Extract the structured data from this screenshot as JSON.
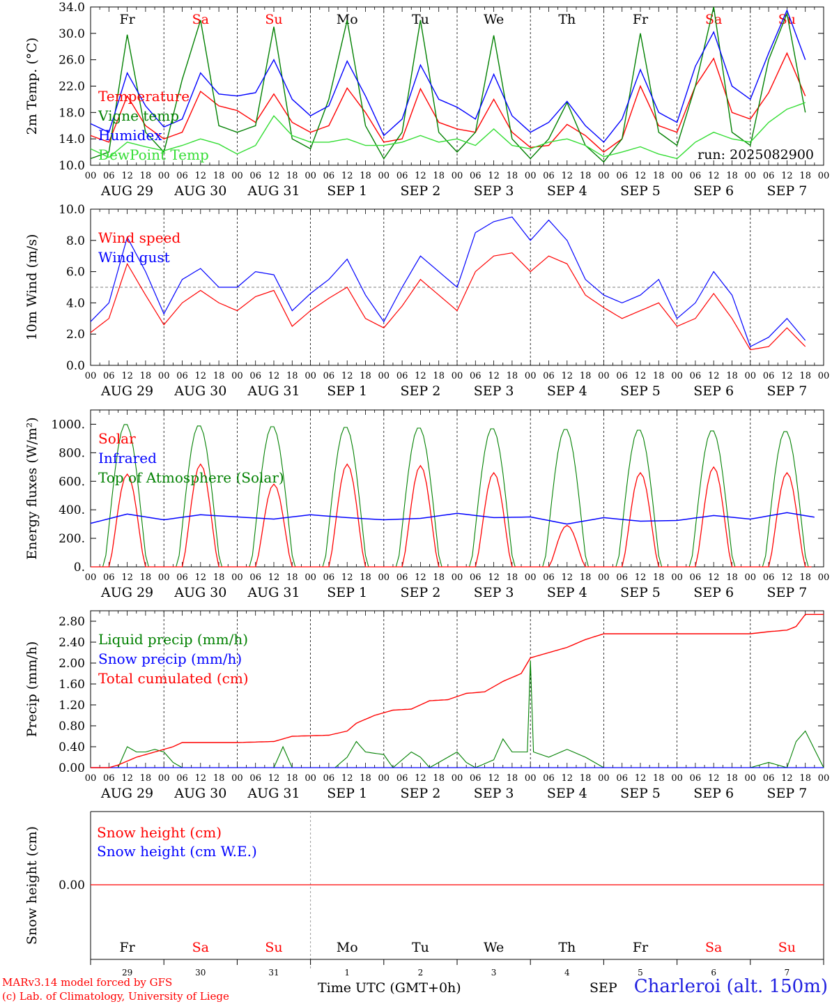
{
  "footer": {
    "model_line": "MARv3.14 model forced by GFS",
    "lab_line": "(c) Lab. of Climatology, University of Liege",
    "time_label": "Time UTC (GMT+0h)",
    "station": "Charleroi (alt. 150m)",
    "month_stub": "SEP"
  },
  "run_label": "run: 2025082900",
  "colors": {
    "red": "#ff0000",
    "green": "#008000",
    "blue": "#0000ff",
    "lightgreen": "#33dd33"
  },
  "chart_data": [
    {
      "type": "line",
      "panel": "temperature",
      "ylabel": "2m Temp. (°C)",
      "ylim": [
        10,
        34
      ],
      "yticks": [
        "10.0",
        "14.0",
        "18.0",
        "22.0",
        "26.0",
        "30.0",
        "34.0"
      ],
      "hour_ticks": [
        "00",
        "06",
        "12",
        "18"
      ],
      "day_labels": [
        "AUG 29",
        "AUG 30",
        "AUG 31",
        "SEP  1",
        "SEP  2",
        "SEP  3",
        "SEP  4",
        "SEP  5",
        "SEP  6",
        "SEP  7"
      ],
      "weekdays": [
        "Fr",
        "Sa",
        "Su",
        "Mo",
        "Tu",
        "We",
        "Th",
        "Fr",
        "Sa",
        "Su"
      ],
      "weekend": [
        false,
        true,
        true,
        false,
        false,
        false,
        false,
        false,
        true,
        true
      ],
      "x_hours": [
        0,
        6,
        12,
        18,
        24,
        30,
        36,
        42,
        48,
        54,
        60,
        66,
        72,
        78,
        84,
        90,
        96,
        102,
        108,
        114,
        120,
        126,
        132,
        138,
        144,
        150,
        156,
        162,
        168,
        174,
        180,
        186,
        192,
        198,
        204,
        210,
        216,
        222,
        228,
        234
      ],
      "series": [
        {
          "name": "Temperature",
          "color": "#ff0000",
          "values": [
            14.5,
            13.5,
            20.5,
            16,
            14,
            15,
            21.2,
            19,
            18.3,
            16.5,
            20.8,
            16.5,
            15,
            16,
            21.7,
            18,
            13.5,
            14,
            21.6,
            16.5,
            15.5,
            15,
            20,
            15,
            12.7,
            13,
            16.2,
            14.5,
            12,
            14,
            22,
            16,
            15,
            22,
            26.2,
            18,
            17,
            21,
            27,
            20.5
          ]
        },
        {
          "name": "Vigne temp",
          "color": "#008000",
          "values": [
            11,
            12,
            29.8,
            15,
            12,
            23,
            32,
            16,
            15,
            16,
            31,
            14,
            12.5,
            20,
            32,
            16,
            11,
            15,
            32,
            15,
            12,
            15,
            29.7,
            14,
            11,
            14,
            19.5,
            13,
            10.5,
            14,
            30,
            15,
            13,
            22,
            34,
            15,
            13,
            26,
            33,
            18
          ]
        },
        {
          "name": "Humidex",
          "color": "#0000ff",
          "values": [
            16.3,
            15,
            24,
            19,
            15.8,
            17,
            24,
            20.8,
            20.5,
            21,
            26,
            20,
            17.5,
            19,
            25.8,
            20.5,
            14.5,
            17,
            25.2,
            20,
            18.8,
            17,
            23.8,
            17.5,
            15,
            16.5,
            19.7,
            16,
            13.5,
            17,
            24.5,
            18,
            16.5,
            25,
            30.2,
            22,
            20,
            27,
            33.5,
            26
          ]
        },
        {
          "name": "DewPoint Temp",
          "color": "#33dd33",
          "values": [
            12.5,
            11.2,
            13.5,
            12.8,
            12.2,
            13,
            14,
            13.2,
            11.7,
            13,
            17.5,
            14.5,
            13.5,
            13.5,
            14,
            13,
            13,
            13.5,
            14.5,
            13.5,
            14,
            13,
            15.5,
            13,
            12.5,
            13.5,
            14,
            13,
            11.3,
            12,
            12.8,
            11.7,
            11,
            13.5,
            15,
            14,
            13.5,
            16.5,
            18.5,
            19.5
          ]
        }
      ]
    },
    {
      "type": "line",
      "panel": "wind",
      "ylabel": "10m Wind (m/s)",
      "ylim": [
        0,
        10
      ],
      "yticks": [
        "0.0",
        "2.0",
        "4.0",
        "6.0",
        "8.0",
        "10.0"
      ],
      "hour_ticks": [
        "00",
        "06",
        "12",
        "18"
      ],
      "day_labels": [
        "AUG 29",
        "AUG 30",
        "AUG 31",
        "SEP  1",
        "SEP  2",
        "SEP  3",
        "SEP  4",
        "SEP  5",
        "SEP  6",
        "SEP  7"
      ],
      "reference_line": 5,
      "x_hours": [
        0,
        6,
        12,
        18,
        24,
        30,
        36,
        42,
        48,
        54,
        60,
        66,
        72,
        78,
        84,
        90,
        96,
        102,
        108,
        114,
        120,
        126,
        132,
        138,
        144,
        150,
        156,
        162,
        168,
        174,
        180,
        186,
        192,
        198,
        204,
        210,
        216,
        222,
        228,
        234
      ],
      "series": [
        {
          "name": "Wind speed",
          "color": "#ff0000",
          "values": [
            2.1,
            3.0,
            6.5,
            4.5,
            2.6,
            4.0,
            4.8,
            4.0,
            3.5,
            4.4,
            4.8,
            2.5,
            3.5,
            4.3,
            5.0,
            3.0,
            2.4,
            3.8,
            5.5,
            4.5,
            3.5,
            6.0,
            7.0,
            7.2,
            6.0,
            7.0,
            6.5,
            4.5,
            3.7,
            3.0,
            3.5,
            4.0,
            2.5,
            3.0,
            4.6,
            3.0,
            1.0,
            1.2,
            2.4,
            1.2
          ]
        },
        {
          "name": "Wind gust",
          "color": "#0000ff",
          "values": [
            2.8,
            4.0,
            8.2,
            6.0,
            3.3,
            5.5,
            6.2,
            5.0,
            5.0,
            6.0,
            5.8,
            3.5,
            4.6,
            5.5,
            6.8,
            4.5,
            2.8,
            5.0,
            7.0,
            6.0,
            5.0,
            8.5,
            9.2,
            9.5,
            8.0,
            9.3,
            8.0,
            5.5,
            4.5,
            4.0,
            4.5,
            5.5,
            3.0,
            4.0,
            6.0,
            4.5,
            1.2,
            1.8,
            3.0,
            1.6
          ]
        }
      ]
    },
    {
      "type": "line",
      "panel": "energy",
      "ylabel": "Energy fluxes (W/m²)",
      "ylim": [
        0,
        1100
      ],
      "yticks": [
        "0.",
        "200.",
        "400.",
        "600.",
        "800.",
        "1000."
      ],
      "hour_ticks": [
        "00",
        "06",
        "12",
        "18"
      ],
      "day_labels": [
        "AUG 29",
        "AUG 30",
        "AUG 31",
        "SEP  1",
        "SEP  2",
        "SEP  3",
        "SEP  4",
        "SEP  5",
        "SEP  6",
        "SEP  7"
      ],
      "day_solar_peaks": [
        650,
        720,
        580,
        720,
        710,
        660,
        290,
        660,
        700,
        660
      ],
      "toa_peaks": [
        1005,
        995,
        990,
        985,
        980,
        975,
        970,
        965,
        960,
        955
      ],
      "infrared_daily": [
        305,
        370,
        330,
        365,
        350,
        335,
        365,
        345,
        330,
        340,
        375,
        345,
        350,
        300,
        345,
        320,
        325,
        360,
        335,
        380
      ],
      "series": [
        {
          "name": "Solar",
          "color": "#ff0000"
        },
        {
          "name": "Infrared",
          "color": "#0000ff"
        },
        {
          "name": "Top of Atmosphere (Solar)",
          "color": "#008000"
        }
      ]
    },
    {
      "type": "line",
      "panel": "precip",
      "ylabel": "Precip (mm/h)",
      "ylim": [
        0,
        3.0
      ],
      "yticks": [
        "0.00",
        "0.40",
        "0.80",
        "1.20",
        "1.60",
        "2.00",
        "2.40",
        "2.80"
      ],
      "hour_ticks": [
        "00",
        "06",
        "12",
        "18"
      ],
      "day_labels": [
        "AUG 29",
        "AUG 30",
        "AUG 31",
        "SEP  1",
        "SEP  2",
        "SEP  3",
        "SEP  4",
        "SEP  5",
        "SEP  6",
        "SEP  7"
      ],
      "cumulated_x_hours": [
        0,
        6,
        9,
        15,
        21,
        27,
        30,
        48,
        60,
        66,
        78,
        84,
        87,
        93,
        99,
        105,
        111,
        117,
        123,
        129,
        135,
        141,
        144,
        147,
        156,
        162,
        168,
        192,
        216,
        222,
        228,
        231,
        234,
        240
      ],
      "cumulated_values": [
        0,
        0,
        0.05,
        0.2,
        0.3,
        0.4,
        0.48,
        0.48,
        0.5,
        0.6,
        0.62,
        0.7,
        0.85,
        1.0,
        1.1,
        1.12,
        1.28,
        1.3,
        1.42,
        1.45,
        1.65,
        1.8,
        2.1,
        2.15,
        2.3,
        2.45,
        2.56,
        2.56,
        2.56,
        2.6,
        2.63,
        2.7,
        2.93,
        2.93
      ],
      "liquid_x_hours": [
        0,
        9,
        12,
        15,
        18,
        21,
        24,
        27,
        30,
        60,
        63,
        66,
        80,
        84,
        87,
        90,
        96,
        99,
        105,
        108,
        111,
        117,
        120,
        123,
        126,
        132,
        135,
        138,
        141,
        143,
        144,
        145,
        150,
        156,
        162,
        168,
        216,
        222,
        228,
        231,
        234,
        240
      ],
      "liquid_values": [
        0,
        0,
        0.4,
        0.3,
        0.3,
        0.35,
        0.3,
        0.1,
        0,
        0,
        0.4,
        0,
        0,
        0.2,
        0.5,
        0.3,
        0.25,
        0,
        0.3,
        0.2,
        0,
        0.2,
        0.3,
        0.1,
        0,
        0.15,
        0.55,
        0.3,
        0.3,
        0.3,
        2.05,
        0.3,
        0.2,
        0.35,
        0.2,
        0,
        0,
        0.1,
        0,
        0.5,
        0.7,
        0
      ],
      "series": [
        {
          "name": "Liquid precip (mm/h)",
          "color": "#008000"
        },
        {
          "name": "Snow precip (mm/h)",
          "color": "#0000ff"
        },
        {
          "name": "Total cumulated (cm)",
          "color": "#ff0000"
        }
      ]
    },
    {
      "type": "line",
      "panel": "snow",
      "ylabel": "Snow height (cm)",
      "yticks": [
        "0.00"
      ],
      "day_numbers": [
        "29",
        "30",
        "31",
        "1",
        "2",
        "3",
        "4",
        "5",
        "6",
        "7"
      ],
      "weekdays": [
        "Fr",
        "Sa",
        "Su",
        "Mo",
        "Tu",
        "We",
        "Th",
        "Fr",
        "Sa",
        "Su"
      ],
      "weekend": [
        false,
        true,
        true,
        false,
        false,
        false,
        false,
        false,
        true,
        true
      ],
      "values": [
        0,
        0
      ],
      "series": [
        {
          "name": "Snow height (cm)",
          "color": "#ff0000"
        },
        {
          "name": "Snow height (cm W.E.)",
          "color": "#0000ff"
        }
      ]
    }
  ]
}
